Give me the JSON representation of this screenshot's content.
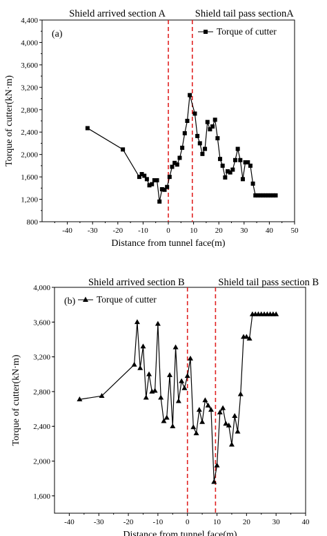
{
  "chart_data": [
    {
      "type": "line",
      "panel_label": "(a)",
      "xlabel": "Distance from tunnel face(m)",
      "ylabel": "Torque of cutter(kN·m)",
      "xlim": [
        -50,
        50
      ],
      "ylim": [
        800,
        4400
      ],
      "x_ticks": [
        -40,
        -30,
        -20,
        -10,
        0,
        10,
        20,
        30,
        40,
        50
      ],
      "y_ticks": [
        800,
        1200,
        1600,
        2000,
        2400,
        2800,
        3200,
        3600,
        4000,
        4400
      ],
      "y_tick_labels": [
        "800",
        "1,200",
        "1,600",
        "2,000",
        "2,400",
        "2,800",
        "3,200",
        "3,600",
        "4,000",
        "4,400"
      ],
      "x_tick_labels": [
        "-40",
        "-30",
        "-20",
        "-10",
        "0",
        "10",
        "20",
        "30",
        "40",
        "50"
      ],
      "marker": "square",
      "legend_position": "top-right",
      "annotations": [
        {
          "text": "Shield arrived section A",
          "x": 0
        },
        {
          "text": "Shield tail pass sectionA",
          "x": 9.5
        }
      ],
      "series": [
        {
          "name": "Torque of cutter",
          "x": [
            -32,
            -18,
            -11.5,
            -10.5,
            -9.5,
            -8.5,
            -7.5,
            -6.5,
            -5.5,
            -4.5,
            -3.5,
            -2.5,
            -1.5,
            -0.5,
            0.5,
            1.5,
            2.5,
            3.5,
            4.5,
            5.5,
            6.5,
            7.5,
            8.5,
            10.5,
            11.5,
            12.5,
            13.5,
            14.5,
            15.5,
            16.5,
            17.5,
            18.5,
            19.5,
            20.5,
            21.5,
            22.5,
            23.5,
            24.5,
            25.5,
            26.5,
            27.5,
            28.5,
            29.5,
            30.5,
            31.5,
            32.5,
            33.5,
            34.5,
            35.5,
            36.5,
            37.5,
            38.5,
            39.5,
            40.5,
            41.5,
            42.5
          ],
          "y": [
            2470,
            2090,
            1600,
            1650,
            1620,
            1560,
            1450,
            1470,
            1540,
            1540,
            1160,
            1380,
            1370,
            1420,
            1600,
            1780,
            1850,
            1820,
            1940,
            2120,
            2380,
            2600,
            3060,
            2730,
            2330,
            2200,
            2010,
            2100,
            2580,
            2450,
            2500,
            2620,
            2290,
            1920,
            1800,
            1590,
            1700,
            1680,
            1730,
            1900,
            2100,
            1900,
            1560,
            1860,
            1860,
            1800,
            1480,
            1270,
            1270,
            1270,
            1270,
            1270,
            1270,
            1270,
            1270,
            1270
          ]
        }
      ]
    },
    {
      "type": "line",
      "panel_label": "(b)",
      "xlabel": "Distance from tunnel face(m)",
      "ylabel": "Torque of cutter(kN·m)",
      "xlim": [
        -45,
        40
      ],
      "ylim": [
        1400,
        4000
      ],
      "x_ticks": [
        -40,
        -30,
        -20,
        -10,
        0,
        10,
        20,
        30,
        40
      ],
      "y_ticks": [
        1600,
        2000,
        2400,
        2800,
        3200,
        3600,
        4000
      ],
      "y_tick_labels": [
        "1,600",
        "2,000",
        "2,400",
        "2,800",
        "3,200",
        "3,600",
        "4,000"
      ],
      "x_tick_labels": [
        "-40",
        "-30",
        "-20",
        "-10",
        "0",
        "10",
        "20",
        "30",
        "40"
      ],
      "marker": "triangle",
      "legend_position": "top-left",
      "annotations": [
        {
          "text": "Shield arrived section B",
          "x": 0
        },
        {
          "text": "Shield tail pass section B",
          "x": 9.5
        }
      ],
      "series": [
        {
          "name": "Torque of cutter",
          "x": [
            -36.5,
            -29,
            -18,
            -17,
            -16,
            -15,
            -14,
            -13,
            -12,
            -11,
            -10,
            -9,
            -8,
            -7,
            -6,
            -5,
            -4,
            -3,
            -2,
            -1,
            0,
            1,
            2,
            3,
            4,
            5,
            6,
            7,
            8,
            9,
            10,
            11,
            12,
            13,
            14,
            15,
            16,
            17,
            18,
            19,
            20,
            21,
            22,
            23,
            24,
            25,
            26,
            27,
            28,
            29,
            30
          ],
          "y": [
            2710,
            2750,
            3110,
            3600,
            3070,
            3320,
            2730,
            3000,
            2800,
            2810,
            3580,
            2730,
            2460,
            2500,
            2990,
            2400,
            3310,
            2690,
            2920,
            2840,
            2980,
            3180,
            2390,
            2320,
            2590,
            2450,
            2700,
            2640,
            2590,
            1760,
            1950,
            2560,
            2610,
            2430,
            2410,
            2190,
            2520,
            2340,
            2770,
            3430,
            3430,
            3410,
            3690,
            3690,
            3690,
            3690,
            3690,
            3690,
            3690,
            3690,
            3690
          ]
        }
      ]
    }
  ]
}
